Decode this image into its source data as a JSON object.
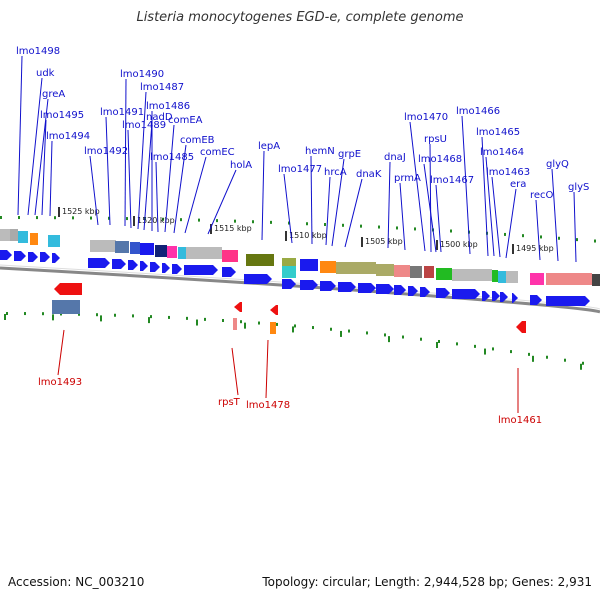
{
  "title": "Listeria monocytogenes EGD-e, complete genome",
  "footer": {
    "accession": "Accession: NC_003210",
    "topology": "Topology: circular; Length: 2,944,528 bp; Genes: 2,931"
  },
  "colors": {
    "forward_label": "#1010cc",
    "reverse_label": "#cc0000",
    "forward_arrow": "#1a1aee",
    "reverse_arrow": "#ee1111",
    "backbone": "#888888",
    "tick": "#228822"
  },
  "scale_labels": [
    "1525 kbp",
    "1520 kbp",
    "1515 kbp",
    "1510 kbp",
    "1505 kbp",
    "1500 kbp",
    "1495 kbp"
  ],
  "forward_genes": [
    "lmo1498",
    "udk",
    "greA",
    "lmo1495",
    "lmo1494",
    "lmo1492",
    "lmo1491",
    "lmo1490",
    "lmo1489",
    "lmo1487",
    "nadD",
    "lmo1486",
    "lmo1485",
    "comEA",
    "comEB",
    "comEC",
    "holA",
    "lepA",
    "lmo1477",
    "hemN",
    "hrcA",
    "grpE",
    "dnaK",
    "dnaJ",
    "prmA",
    "lmo1470",
    "rpsU",
    "lmo1468",
    "lmo1467",
    "lmo1466",
    "lmo1465",
    "lmo1464",
    "lmo1463",
    "era",
    "recO",
    "glyQ",
    "glyS"
  ],
  "reverse_genes": [
    "lmo1493",
    "rpsT",
    "lmo1478",
    "lmo1461"
  ]
}
